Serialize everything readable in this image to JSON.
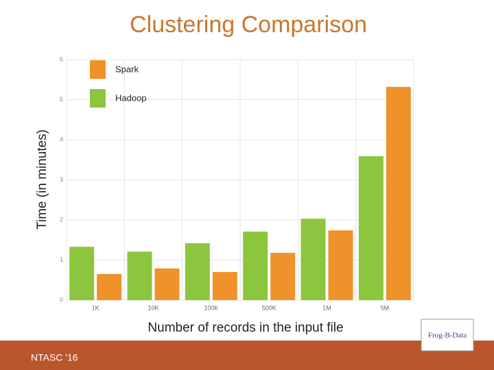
{
  "chart_data": {
    "type": "bar",
    "title": "Clustering Comparison",
    "y_label": "Time (in minutes)",
    "x_label": "Number of records in the input file",
    "categories": [
      "1K",
      "10K",
      "100K",
      "500K",
      "1M",
      "5M"
    ],
    "series": [
      {
        "name": "Spark",
        "color": "#ef922a",
        "values": [
          0.65,
          0.79,
          0.7,
          1.18,
          1.74,
          5.32
        ]
      },
      {
        "name": "Hadoop",
        "color": "#8cc63f",
        "values": [
          1.33,
          1.21,
          1.42,
          1.71,
          2.03,
          3.59
        ]
      }
    ],
    "ylim": [
      0,
      6
    ],
    "yticks": [
      0,
      1,
      2,
      3,
      4,
      5,
      6
    ],
    "grid": true
  },
  "footer": {
    "text": "NTASC '16",
    "logo": "Frog-B-Data"
  }
}
